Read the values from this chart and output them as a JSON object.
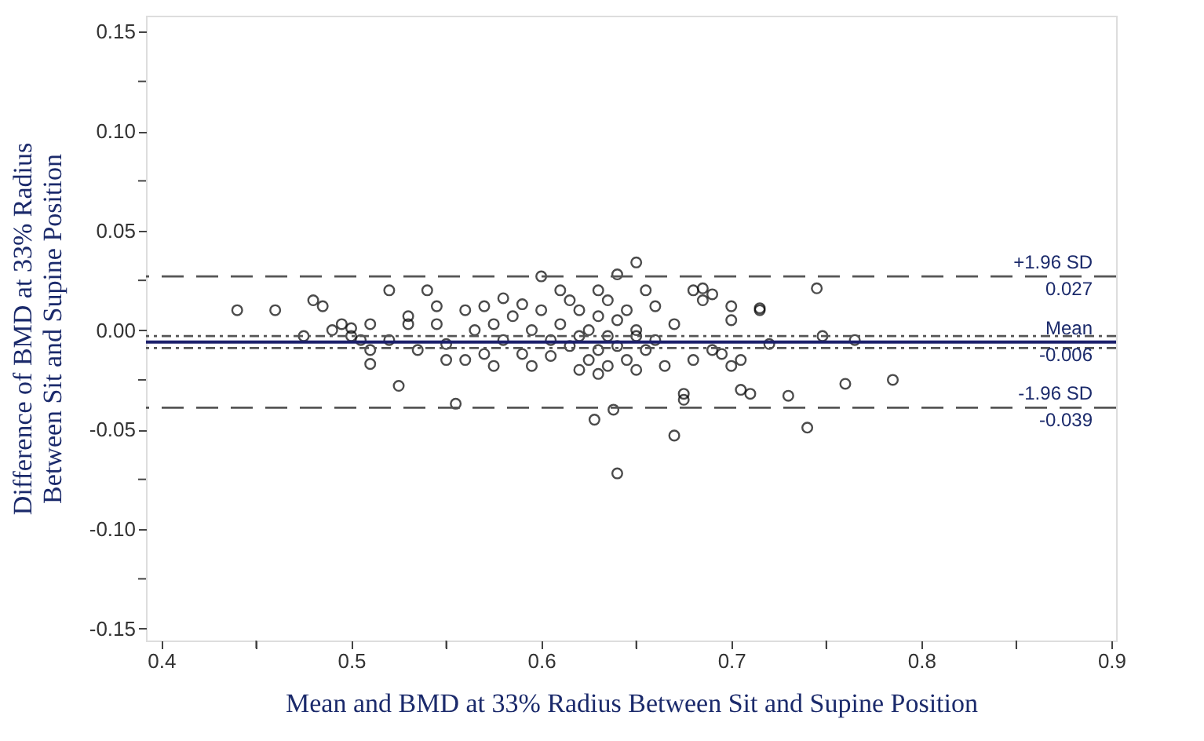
{
  "chart_data": {
    "type": "scatter",
    "xlabel": "Mean and BMD at 33% Radius Between Sit and Supine Position",
    "ylabel": "Difference of BMD at 33% Radius Between Sit and Supine Position",
    "xlim": [
      0.392,
      0.9025
    ],
    "ylim": [
      -0.156,
      0.158
    ],
    "xticks": [
      0.4,
      {
        "value": 0.45,
        "label": null
      },
      0.5,
      {
        "value": 0.55,
        "label": null
      },
      0.6,
      {
        "value": 0.65,
        "label": null
      },
      0.7,
      {
        "value": 0.75,
        "label": null
      },
      0.8,
      {
        "value": 0.85,
        "label": null
      },
      0.9
    ],
    "yticks": [
      {
        "value": -0.15,
        "label": "-0.15"
      },
      {
        "value": -0.125,
        "label": null
      },
      {
        "value": -0.1,
        "label": "-0.10"
      },
      {
        "value": -0.075,
        "label": null
      },
      {
        "value": -0.05,
        "label": "-0.05"
      },
      {
        "value": -0.025,
        "label": null
      },
      {
        "value": 0,
        "label": "0.00"
      },
      {
        "value": 0.025,
        "label": null
      },
      {
        "value": 0.05,
        "label": "0.05"
      },
      {
        "value": 0.075,
        "label": null
      },
      {
        "value": 0.1,
        "label": "0.10"
      },
      {
        "value": 0.125,
        "label": null
      },
      {
        "value": 0.15,
        "label": "0.15"
      }
    ],
    "grid": false,
    "marker": "circle",
    "annotations": [
      {
        "text": "0.027",
        "y": 0.027
      },
      {
        "text": "-0.006",
        "y": -0.006
      },
      {
        "text": "-0.039",
        "y": -0.039
      }
    ],
    "series": [
      {
        "color": "#000000",
        "x": [
          0.44,
          0.46,
          0.475,
          0.48,
          0.485,
          0.49,
          0.495,
          0.5,
          0.5,
          0.505,
          0.51,
          0.51,
          0.51,
          0.52,
          0.52,
          0.525,
          0.53,
          0.53,
          0.535,
          0.54,
          0.545,
          0.545,
          0.55,
          0.55,
          0.555,
          0.56,
          0.56,
          0.565,
          0.57,
          0.57,
          0.575,
          0.575,
          0.58,
          0.58,
          0.585,
          0.59,
          0.59,
          0.595,
          0.595,
          0.6,
          0.6,
          0.605,
          0.605,
          0.61,
          0.61,
          0.615,
          0.615,
          0.62,
          0.62,
          0.62,
          0.625,
          0.625,
          0.628,
          0.63,
          0.63,
          0.63,
          0.63,
          0.635,
          0.635,
          0.635,
          0.638,
          0.64,
          0.64,
          0.64,
          0.64,
          0.645,
          0.645,
          0.65,
          0.65,
          0.65,
          0.65,
          0.655,
          0.655,
          0.66,
          0.66,
          0.665,
          0.67,
          0.67,
          0.675,
          0.675,
          0.68,
          0.68,
          0.685,
          0.685,
          0.69,
          0.69,
          0.695,
          0.7,
          0.7,
          0.7,
          0.705,
          0.705,
          0.71,
          0.715,
          0.715,
          0.72,
          0.73,
          0.745,
          0.74,
          0.748,
          0.76,
          0.765,
          0.785
        ],
        "values": [
          0.01,
          0.01,
          -0.003,
          0.015,
          0.012,
          0.0,
          0.003,
          -0.003,
          0.001,
          -0.005,
          0.003,
          -0.01,
          -0.017,
          0.02,
          -0.005,
          -0.028,
          0.007,
          0.003,
          -0.01,
          0.02,
          0.012,
          0.003,
          -0.007,
          -0.015,
          -0.037,
          0.01,
          -0.015,
          0.0,
          0.012,
          -0.012,
          0.003,
          -0.018,
          0.016,
          -0.005,
          0.007,
          0.013,
          -0.012,
          0.0,
          -0.018,
          0.027,
          0.01,
          -0.005,
          -0.013,
          0.02,
          0.003,
          0.015,
          -0.008,
          0.01,
          -0.003,
          -0.02,
          0.0,
          -0.015,
          -0.045,
          0.02,
          0.007,
          -0.01,
          -0.022,
          0.015,
          -0.003,
          -0.018,
          -0.04,
          0.028,
          0.005,
          -0.008,
          -0.072,
          0.01,
          -0.015,
          0.034,
          0.0,
          -0.003,
          -0.02,
          0.02,
          -0.01,
          0.012,
          -0.005,
          -0.018,
          -0.053,
          0.003,
          -0.035,
          -0.032,
          0.02,
          -0.015,
          0.021,
          0.015,
          0.018,
          -0.01,
          -0.012,
          0.012,
          -0.018,
          0.005,
          -0.03,
          -0.015,
          -0.032,
          0.011,
          0.01,
          -0.007,
          -0.033,
          0.021,
          -0.049,
          -0.003,
          -0.027,
          -0.005,
          -0.025
        ]
      }
    ],
    "ref_lines": [
      {
        "axis": "y",
        "value": 0.027,
        "label": "+1.96 SD",
        "color": "#555555",
        "line_style": "dashed"
      },
      {
        "axis": "y",
        "value": -0.006,
        "label": "Mean",
        "color": "#1b1f6b",
        "line_style": "solid"
      },
      {
        "axis": "y",
        "value": -0.039,
        "label": "-1.96 SD",
        "color": "#555555",
        "line_style": "dashed"
      },
      {
        "axis": "y",
        "value": -0.003,
        "color": "#555555",
        "line_style": "dotted"
      },
      {
        "axis": "y",
        "value": -0.009,
        "color": "#555555",
        "line_style": "dotted"
      }
    ]
  }
}
